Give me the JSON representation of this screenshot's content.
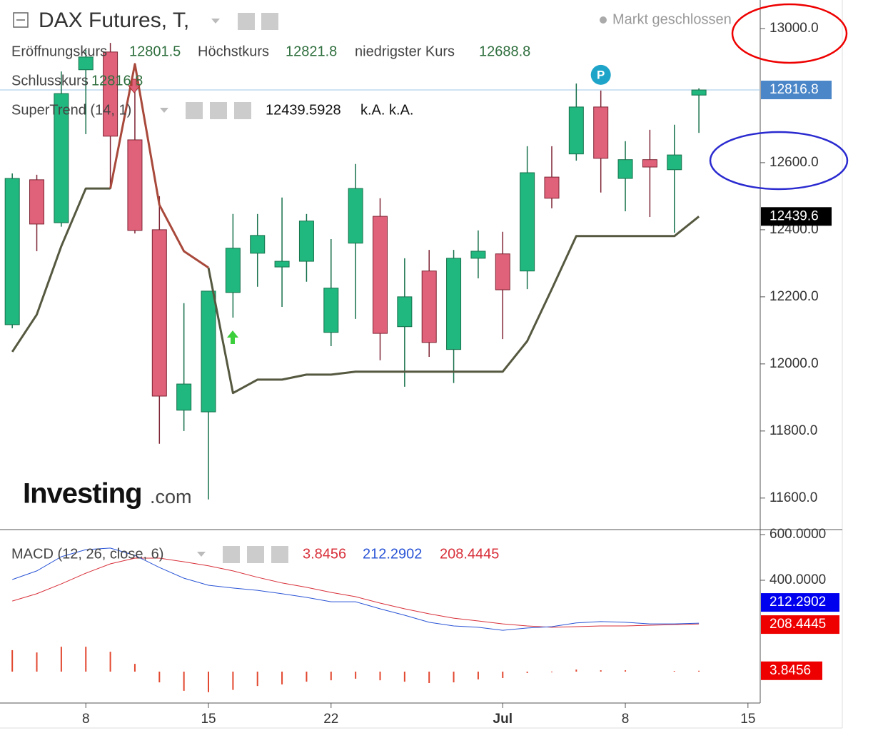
{
  "chart_data": [
    {
      "type": "candlestick",
      "title": "DAX Futures, T,",
      "status": "Markt geschlossen",
      "ohlc_labels": [
        "Eröffnungskurs",
        "Höchstkurs",
        "niedrigster Kurs",
        "Schlusskurs"
      ],
      "open": [
        12117,
        12549,
        12421,
        12877,
        12930,
        12668,
        12400,
        11862,
        11857,
        12213,
        12330,
        12289,
        12306,
        12094,
        12360,
        12440,
        12111,
        12277,
        12043,
        12315,
        12328,
        12277,
        12557,
        12626,
        12766,
        12553,
        12609,
        12579,
        12801.5
      ],
      "high": [
        12568,
        12564,
        12872,
        12936,
        12957,
        12840,
        12500,
        12181,
        12217,
        12447,
        12447,
        12496,
        12447,
        12372,
        12596,
        12494,
        12315,
        12340,
        12340,
        12398,
        12394,
        12649,
        12649,
        12836,
        12815,
        12664,
        12698,
        12713,
        12821.8
      ],
      "low": [
        12106,
        12336,
        12409,
        12685,
        12521,
        12389,
        11762,
        11800,
        11596,
        12138,
        12230,
        12170,
        12245,
        12053,
        12134,
        12011,
        11932,
        12021,
        11943,
        12255,
        12074,
        12223,
        12464,
        12606,
        12511,
        12455,
        12438,
        12391,
        12688.8
      ],
      "close": [
        12553,
        12417,
        12806,
        12915,
        12679,
        12398,
        11904,
        11940,
        12217,
        12345,
        12383,
        12306,
        12426,
        12226,
        12523,
        12091,
        12200,
        12064,
        12315,
        12336,
        12221,
        12570,
        12494,
        12766,
        12613,
        12609,
        12587,
        12623,
        12816.8
      ],
      "up_color": "#20b87e",
      "up_border": "#17714c",
      "down_color": "#e0627a",
      "down_border": "#7e2434",
      "last_price_color": "#4a86c8",
      "ylim": [
        11506,
        13085
      ],
      "yticks": [
        {
          "value": 11600,
          "label": "11600.0"
        },
        {
          "value": 11800,
          "label": "11800.0"
        },
        {
          "value": 12000,
          "label": "12000.0"
        },
        {
          "value": 12200,
          "label": "12200.0"
        },
        {
          "value": 12400,
          "label": "12400.0"
        },
        {
          "value": 12600,
          "label": "12600.0"
        },
        {
          "value": 13000,
          "label": "13000.0"
        }
      ],
      "xlim": [
        -0.5,
        30.5
      ],
      "xticks": [
        {
          "value": 3,
          "label": "8"
        },
        {
          "value": 8,
          "label": "15"
        },
        {
          "value": 13,
          "label": "22"
        },
        {
          "value": 20,
          "label": "Jul"
        },
        {
          "value": 25,
          "label": "8"
        },
        {
          "value": 30,
          "label": "15"
        }
      ],
      "supertrend": {
        "label": "SuperTrend (14, 1)",
        "extra": "k.A. k.A.",
        "value_label": "12439.6",
        "up": [
          12036,
          12147,
          12351,
          12523,
          12523,
          null,
          null,
          null,
          12287,
          11913,
          11953,
          11953,
          11968,
          11968,
          11977,
          11977,
          11977,
          11977,
          11977,
          11977,
          11977,
          12068,
          12223,
          12381,
          12381,
          12381,
          12381,
          12381,
          12439.5928
        ],
        "down": [
          null,
          null,
          null,
          null,
          12523,
          12894,
          12474,
          12336,
          12287,
          null,
          null,
          null,
          null,
          null,
          null,
          null,
          null,
          null,
          null,
          null,
          null,
          null,
          null,
          null,
          null,
          null,
          null,
          null,
          null
        ],
        "up_color": "#565940",
        "down_color": "#a8493b"
      },
      "marker": "P",
      "logo": {
        "main": "Investing",
        "suffix": ".com"
      }
    },
    {
      "type": "macd",
      "label": "MACD (12, 26, close, 6)",
      "histogram": [
        94,
        84,
        109,
        109,
        87,
        34,
        -47,
        -84,
        -90,
        -80,
        -63,
        -56,
        -44,
        -38,
        -31,
        -38,
        -44,
        -50,
        -47,
        -34,
        -28,
        -6,
        -3,
        9,
        6,
        6,
        0,
        3,
        3.8456
      ],
      "macd": [
        403,
        441,
        503,
        534,
        541,
        509,
        456,
        409,
        378,
        366,
        356,
        341,
        325,
        306,
        306,
        275,
        247,
        216,
        200,
        194,
        181,
        191,
        197,
        213,
        219,
        216,
        209,
        209,
        212.2902
      ],
      "signal": [
        309,
        341,
        384,
        431,
        472,
        497,
        497,
        481,
        463,
        441,
        413,
        388,
        369,
        347,
        328,
        300,
        275,
        253,
        234,
        222,
        209,
        200,
        194,
        197,
        200,
        200,
        203,
        206,
        208.4445
      ],
      "histogram_color": "#e2472f",
      "macd_color": "#2b55d6",
      "signal_color": "#d8303a",
      "ylim": [
        -137.5,
        621.9
      ],
      "yticks": [
        {
          "value": 400,
          "label": "400.0000"
        },
        {
          "value": 600,
          "label": "600.0000"
        }
      ]
    }
  ]
}
